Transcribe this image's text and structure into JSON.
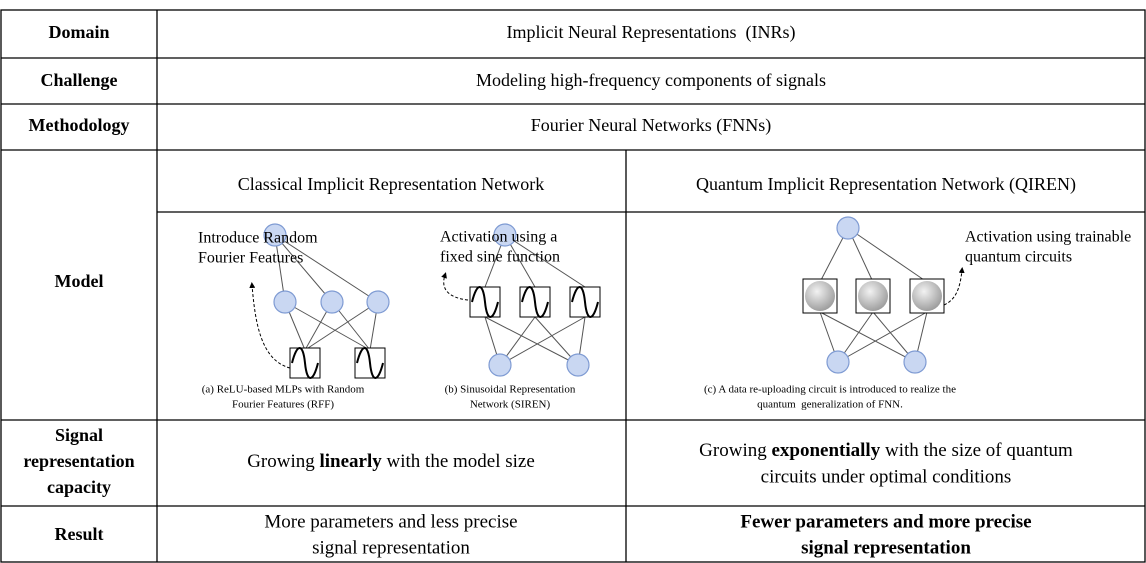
{
  "table": {
    "domain": {
      "label": "Domain",
      "text": "Implicit Neural Representations  (INRs)"
    },
    "challenge": {
      "label": "Challenge",
      "text": "Modeling high-frequency components of signals"
    },
    "methodology": {
      "label": "Methodology",
      "text": "Fourier Neural Networks (FNNs)"
    },
    "model": {
      "label": "Model",
      "classical_title": "Classical Implicit Representation Network",
      "quantum_title": "Quantum Implicit Representation Network (QIREN)",
      "rff_note": [
        "Introduce Random",
        "Fourier Features"
      ],
      "siren_note": [
        "Activation using a",
        "fixed sine function"
      ],
      "qiren_note": [
        "Activation using trainable",
        "quantum circuits"
      ],
      "caption_a": [
        "(a) ReLU-based MLPs with Random",
        "Fourier Features (RFF)"
      ],
      "caption_b": [
        "(b) Sinusoidal Representation",
        "Network (SIREN)"
      ],
      "caption_c": [
        "(c) A data re-uploading circuit is introduced to realize the",
        "quantum  generalization of FNN."
      ]
    },
    "signal": {
      "label": [
        "Signal",
        "representation",
        "capacity"
      ],
      "classical": [
        "Growing ",
        "linearly",
        " with the model size"
      ],
      "quantum": [
        [
          "Growing ",
          "exponentially",
          " with the size of quantum"
        ],
        [
          "circuits under optimal conditions"
        ]
      ]
    },
    "result": {
      "label": "Result",
      "classical": [
        "More parameters and less precise",
        "signal representation"
      ],
      "quantum": [
        "Fewer parameters and more precise",
        "signal representation"
      ]
    }
  }
}
